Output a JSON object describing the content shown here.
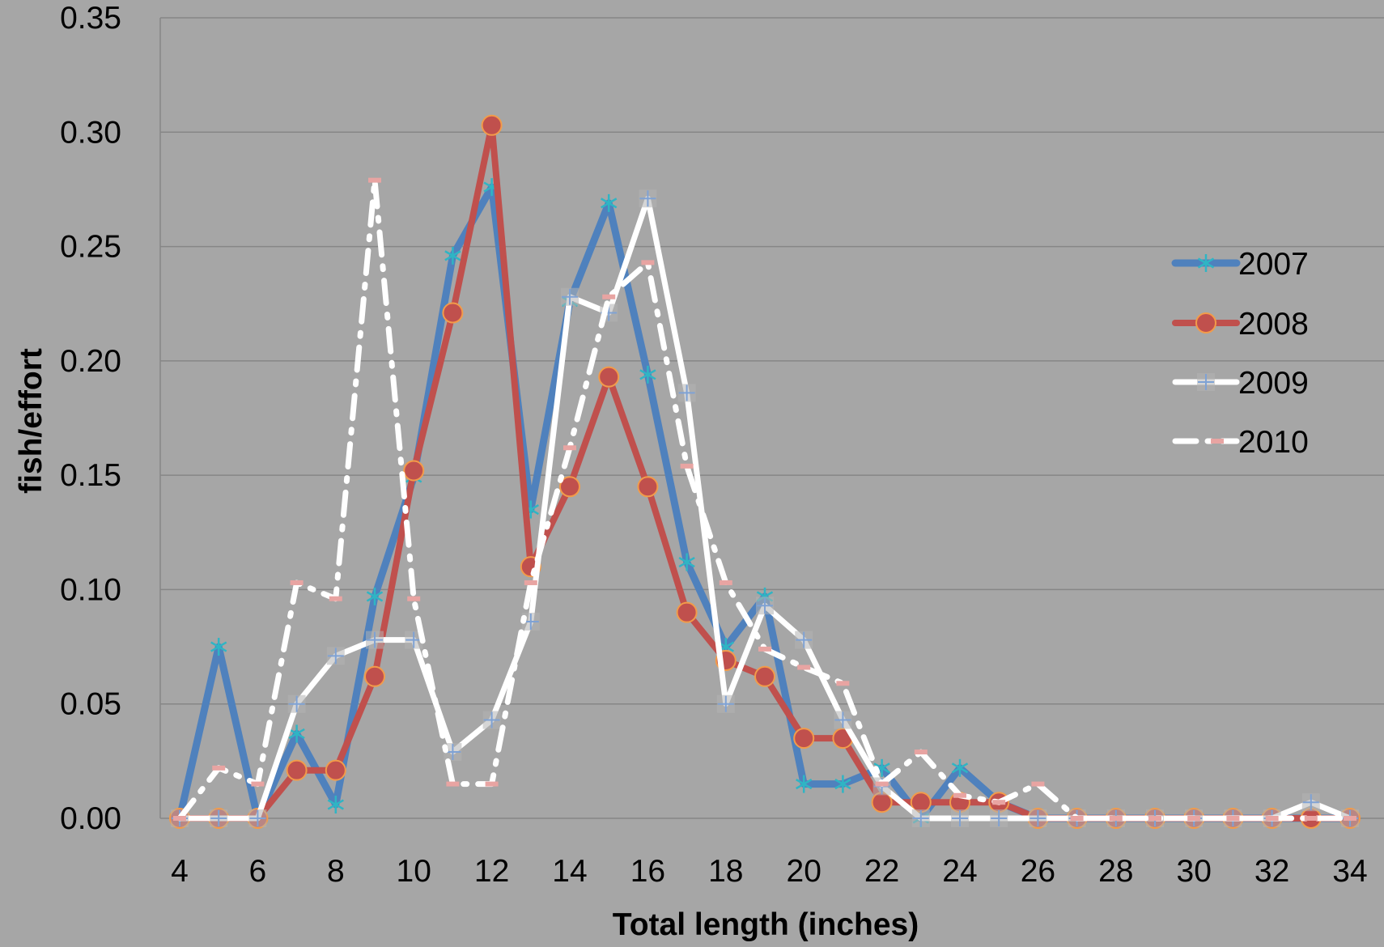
{
  "chart_data": {
    "type": "line",
    "title": "",
    "xlabel": "Total length (inches)",
    "ylabel": "fish/effort",
    "xlim": [
      4,
      34
    ],
    "ylim": [
      0,
      0.35
    ],
    "xticks": [
      "4",
      "6",
      "8",
      "10",
      "12",
      "14",
      "16",
      "18",
      "20",
      "22",
      "24",
      "26",
      "28",
      "30",
      "32",
      "34"
    ],
    "yticks": [
      "0.00",
      "0.05",
      "0.10",
      "0.15",
      "0.20",
      "0.25",
      "0.30",
      "0.35"
    ],
    "grid": "horizontal",
    "legend_position": "right",
    "x": [
      4,
      5,
      6,
      7,
      8,
      9,
      10,
      11,
      12,
      13,
      14,
      15,
      16,
      17,
      18,
      19,
      20,
      21,
      22,
      23,
      24,
      25,
      26,
      27,
      28,
      29,
      30,
      31,
      32,
      33,
      34
    ],
    "series": [
      {
        "name": "2007",
        "color": "#4f81bd",
        "values": [
          0,
          0.075,
          0,
          0.037,
          0.006,
          0.097,
          0.149,
          0.246,
          0.276,
          0.135,
          0.226,
          0.269,
          0.194,
          0.112,
          0.075,
          0.097,
          0.015,
          0.015,
          0.022,
          0,
          0.022,
          0.007,
          0,
          0,
          0,
          0,
          0,
          0,
          0,
          0,
          0
        ]
      },
      {
        "name": "2008",
        "color": "#c0504d",
        "values": [
          0,
          0,
          0,
          0.021,
          0.021,
          0.062,
          0.152,
          0.221,
          0.303,
          0.11,
          0.145,
          0.193,
          0.145,
          0.09,
          0.069,
          0.062,
          0.035,
          0.035,
          0.007,
          0.007,
          0.007,
          0.007,
          0,
          0,
          0,
          0,
          0,
          0,
          0,
          0,
          0
        ]
      },
      {
        "name": "2009",
        "color": "#ffffff",
        "values": [
          0,
          0,
          0,
          0.05,
          0.071,
          0.078,
          0.078,
          0.029,
          0.043,
          0.086,
          0.228,
          0.221,
          0.271,
          0.186,
          0.05,
          0.093,
          0.078,
          0.043,
          0.014,
          0,
          0,
          0,
          0,
          0,
          0,
          0,
          0,
          0,
          0,
          0.007,
          0
        ]
      },
      {
        "name": "2010",
        "color": "#ffffff",
        "values": [
          0,
          0.022,
          0.015,
          0.103,
          0.096,
          0.279,
          0.096,
          0.015,
          0.015,
          0.103,
          0.162,
          0.228,
          0.243,
          0.154,
          0.103,
          0.074,
          0.066,
          0.059,
          0.015,
          0.029,
          0.01,
          0.007,
          0.015,
          0,
          0,
          0,
          0,
          0,
          0,
          0,
          0
        ]
      }
    ]
  }
}
